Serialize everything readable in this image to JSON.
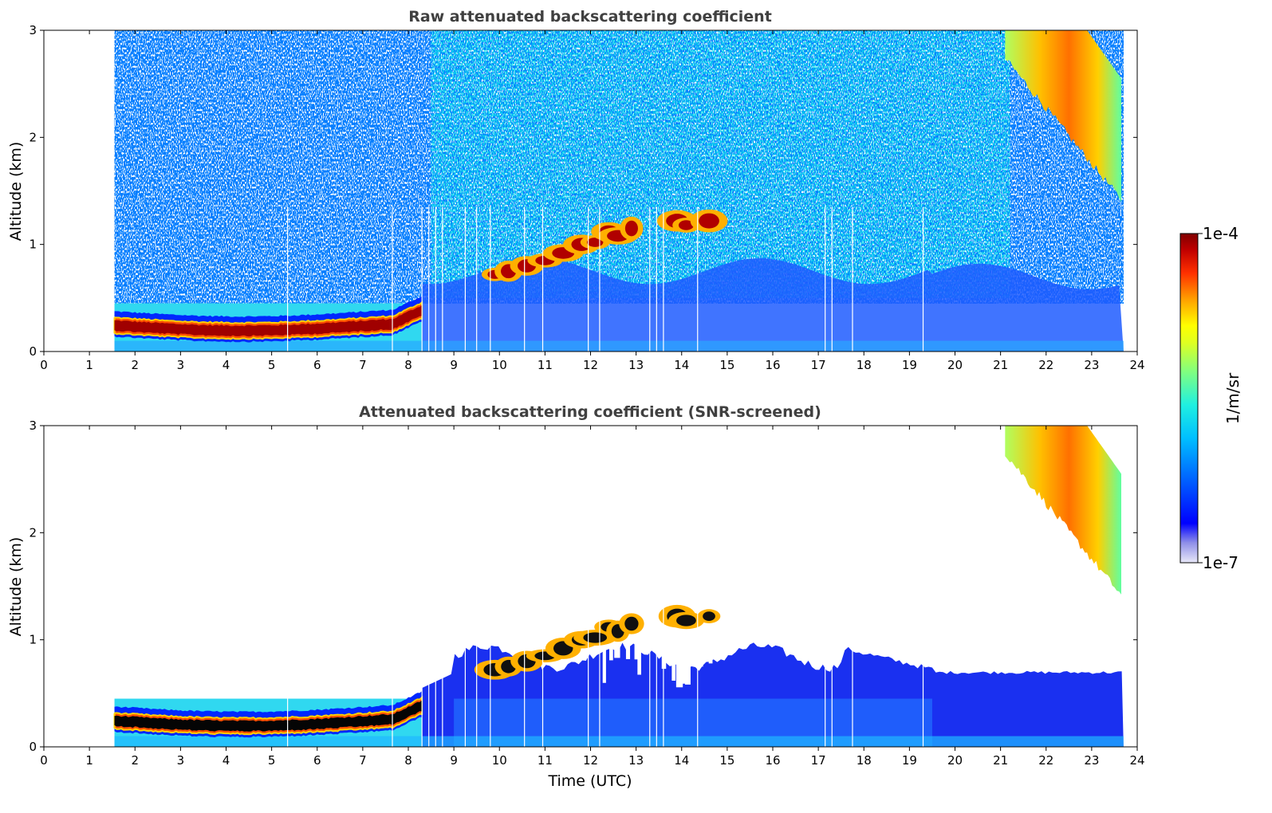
{
  "chart_data": [
    {
      "type": "heatmap",
      "title": "Raw attenuated backscattering coefficient",
      "xlabel": "",
      "ylabel": "Altitude (km)",
      "xlim": [
        0,
        24
      ],
      "ylim": [
        0,
        3
      ],
      "xticks": [
        "0",
        "1",
        "2",
        "3",
        "4",
        "5",
        "6",
        "7",
        "8",
        "9",
        "10",
        "11",
        "12",
        "13",
        "14",
        "15",
        "16",
        "17",
        "18",
        "19",
        "20",
        "21",
        "22",
        "23",
        "24"
      ],
      "yticks": [
        "0",
        "1",
        "2",
        "3"
      ],
      "data_time_range": [
        1.55,
        23.7
      ],
      "features": [
        {
          "name": "fog layer",
          "time": [
            1.55,
            8.0
          ],
          "altitude_km": [
            0.15,
            0.35
          ],
          "level": "1e-4"
        },
        {
          "name": "clouds",
          "time": [
            9.8,
            14.7
          ],
          "altitude_km": [
            0.7,
            1.3
          ],
          "level": "1e-4"
        },
        {
          "name": "cirrus",
          "time": [
            21.0,
            23.7
          ],
          "altitude_km": [
            1.3,
            3.0
          ],
          "level": "5e-6"
        }
      ],
      "screened": false
    },
    {
      "type": "heatmap",
      "title": "Attenuated backscattering coefficient (SNR-screened)",
      "xlabel": "Time (UTC)",
      "ylabel": "Altitude (km)",
      "xlim": [
        0,
        24
      ],
      "ylim": [
        0,
        3
      ],
      "xticks": [
        "0",
        "1",
        "2",
        "3",
        "4",
        "5",
        "6",
        "7",
        "8",
        "9",
        "10",
        "11",
        "12",
        "13",
        "14",
        "15",
        "16",
        "17",
        "18",
        "19",
        "20",
        "21",
        "22",
        "23",
        "24"
      ],
      "yticks": [
        "0",
        "1",
        "2",
        "3"
      ],
      "data_time_range": [
        1.55,
        23.7
      ],
      "screened": true
    }
  ],
  "colorbar": {
    "label": "1/m/sr",
    "max_label": "1e-4",
    "min_label": "1e-7",
    "scale": "log",
    "colors": [
      "#e8e8f8",
      "#c8c8f0",
      "#9090e8",
      "#5050f0",
      "#0000ff",
      "#0040ff",
      "#0080ff",
      "#00b0ff",
      "#00e0f0",
      "#40ffc0",
      "#90ff70",
      "#d0ff30",
      "#ffff00",
      "#ffc000",
      "#ff8000",
      "#ff4000",
      "#e00000",
      "#900000"
    ]
  }
}
